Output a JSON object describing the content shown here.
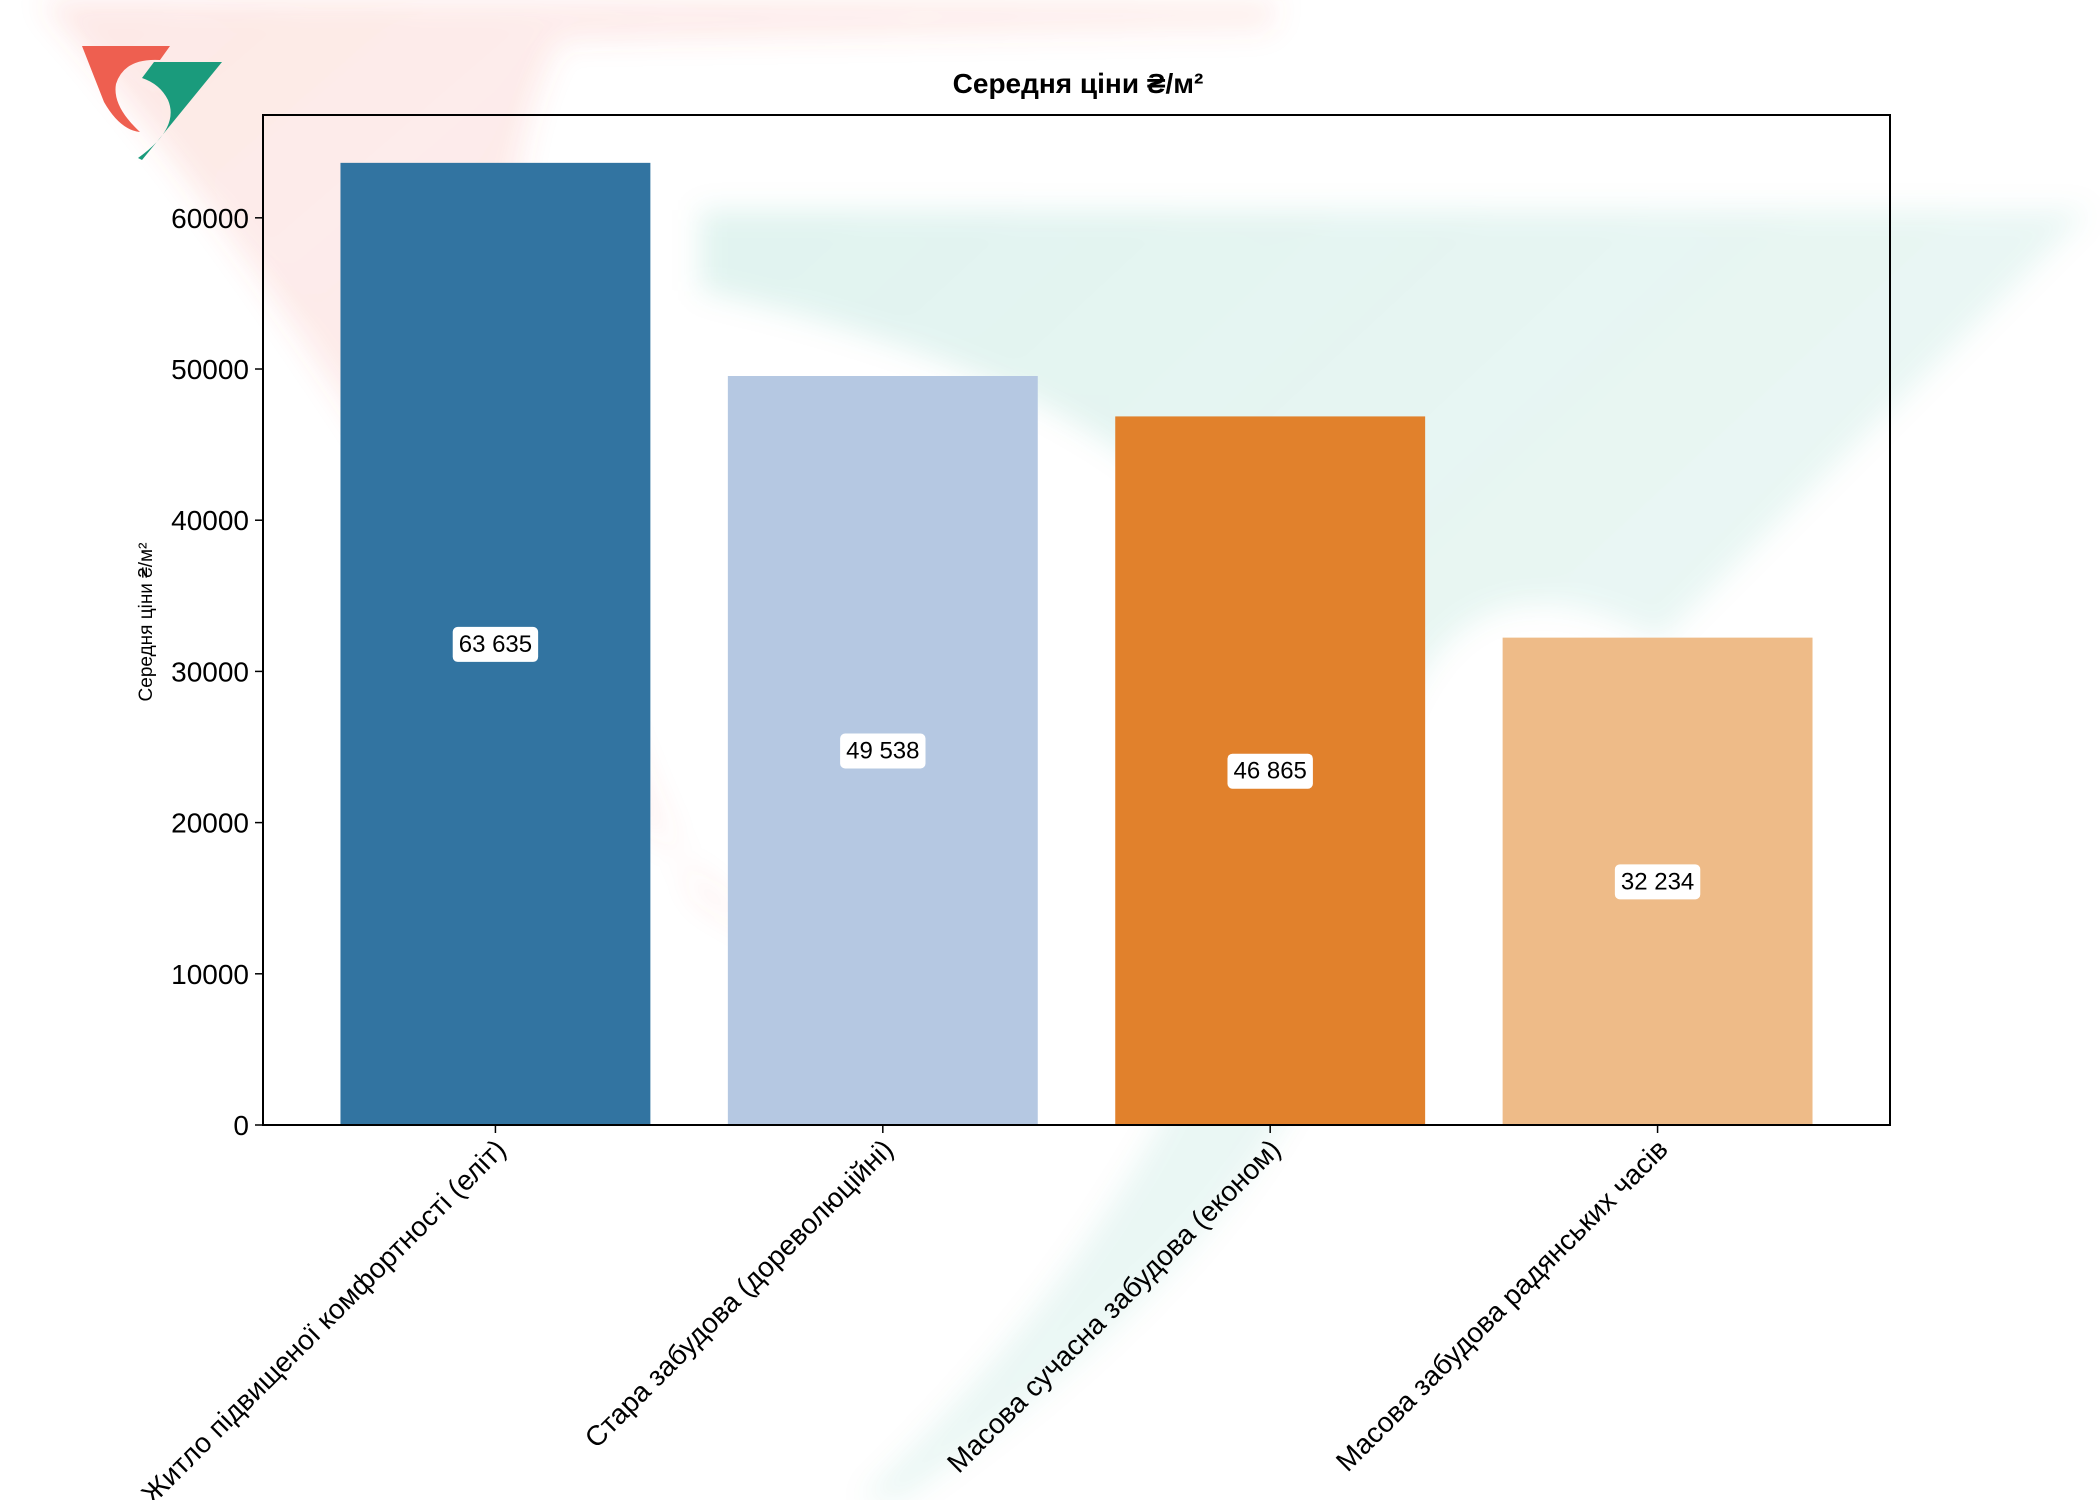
{
  "chart_data": {
    "type": "bar",
    "title": "Середня ціни ₴/м²",
    "xlabel": "",
    "ylabel": "Середня ціни ₴/м²",
    "ylim": [
      0,
      66800
    ],
    "yticks": [
      0,
      10000,
      20000,
      30000,
      40000,
      50000,
      60000
    ],
    "ytick_labels": [
      "0",
      "10000",
      "20000",
      "30000",
      "40000",
      "50000",
      "60000"
    ],
    "categories": [
      "Житло підвищеної комфортності (еліт)",
      "Стара забудова (дореволюційні)",
      "Масова сучасна забудова (економ)",
      "Масова забудова радянських часів"
    ],
    "values": [
      63635,
      49538,
      46865,
      32234
    ],
    "value_labels": [
      "63 635",
      "49 538",
      "46 865",
      "32 234"
    ],
    "bar_colors": [
      "#3274a1",
      "#b5c8e2",
      "#e1812c",
      "#eebb88"
    ],
    "grid": false,
    "legend": "none"
  },
  "logo": {
    "name": "logo-icon",
    "colors": [
      "#ee5f50",
      "#1a9b7c"
    ]
  }
}
